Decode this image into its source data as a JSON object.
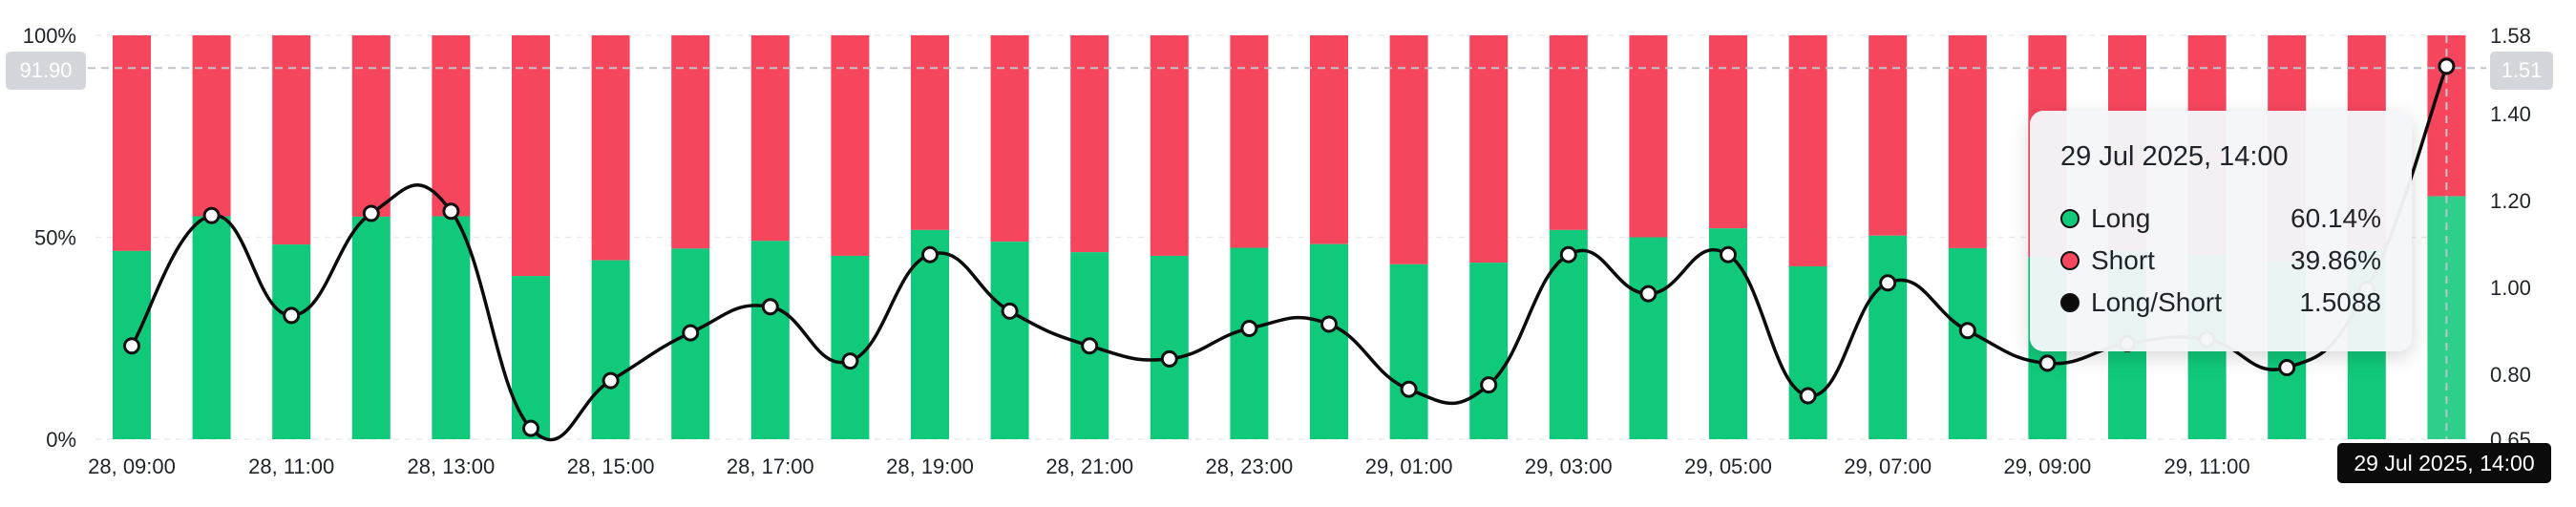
{
  "chart_data": {
    "type": "bar",
    "series": [
      {
        "name": "Long",
        "kind": "bar-stacked",
        "color": "#10c97a",
        "values": [
          46.6,
          55.2,
          48.2,
          55.1,
          55.2,
          40.4,
          44.3,
          47.2,
          49.1,
          45.4,
          51.8,
          48.9,
          46.3,
          45.4,
          47.4,
          48.3,
          43.3,
          43.7,
          51.8,
          50.0,
          52.2,
          42.8,
          50.4,
          47.3,
          45.1,
          46.6,
          45.6,
          44.0,
          47.0,
          60.14
        ]
      },
      {
        "name": "Short",
        "kind": "bar-stacked",
        "color": "#f6465d",
        "values": [
          53.4,
          44.8,
          51.8,
          44.9,
          44.8,
          59.6,
          55.7,
          52.8,
          50.9,
          54.6,
          48.2,
          51.1,
          53.7,
          54.6,
          52.6,
          51.7,
          56.7,
          56.3,
          48.2,
          50.0,
          47.8,
          57.2,
          49.6,
          52.7,
          54.9,
          53.4,
          54.4,
          56.0,
          53.0,
          39.86
        ]
      },
      {
        "name": "Long/Short",
        "kind": "line",
        "axis": "right",
        "color": "#0b0b0b",
        "values": [
          0.865,
          1.165,
          0.935,
          1.17,
          1.175,
          0.675,
          0.785,
          0.895,
          0.955,
          0.83,
          1.075,
          0.945,
          0.865,
          0.835,
          0.905,
          0.915,
          0.765,
          0.775,
          1.075,
          0.985,
          1.075,
          0.75,
          1.01,
          0.9,
          0.825,
          0.87,
          0.88,
          0.815,
          0.995,
          1.5088
        ]
      }
    ],
    "categories": [
      "28, 09:00",
      "28, 10:00",
      "28, 11:00",
      "28, 12:00",
      "28, 13:00",
      "28, 14:00",
      "28, 15:00",
      "28, 16:00",
      "28, 17:00",
      "28, 18:00",
      "28, 19:00",
      "28, 20:00",
      "28, 21:00",
      "28, 22:00",
      "28, 23:00",
      "29, 00:00",
      "29, 01:00",
      "29, 02:00",
      "29, 03:00",
      "29, 04:00",
      "29, 05:00",
      "29, 06:00",
      "29, 07:00",
      "29, 08:00",
      "29, 09:00",
      "29, 10:00",
      "29, 11:00",
      "29, 12:00",
      "29, 13:00",
      "29, 14:00"
    ],
    "x_tick_labels": [
      "28, 09:00",
      "28, 11:00",
      "28, 13:00",
      "28, 15:00",
      "28, 17:00",
      "28, 19:00",
      "28, 21:00",
      "28, 23:00",
      "29, 01:00",
      "29, 03:00",
      "29, 05:00",
      "29, 07:00",
      "29, 09:00",
      "29, 11:00"
    ],
    "y_left": {
      "ticks": [
        "100%",
        "50%",
        "0%"
      ],
      "ylim": [
        0,
        100
      ]
    },
    "y_right": {
      "ticks": [
        "1.58",
        "1.40",
        "1.20",
        "1.00",
        "0.80",
        "0.65"
      ],
      "ylim": [
        0.65,
        1.58
      ]
    },
    "grid": true,
    "legend": "tooltip"
  },
  "crosshair": {
    "left_label": "91.90",
    "right_label": "1.51",
    "time_label": "29 Jul 2025, 14:00",
    "level_percent": 91.9
  },
  "tooltip": {
    "title": "29 Jul 2025, 14:00",
    "rows": [
      {
        "label": "Long",
        "value": "60.14%",
        "color": "#10c97a"
      },
      {
        "label": "Short",
        "value": "39.86%",
        "color": "#f6465d"
      },
      {
        "label": "Long/Short",
        "value": "1.5088",
        "color": "#0b0b0b"
      }
    ]
  }
}
